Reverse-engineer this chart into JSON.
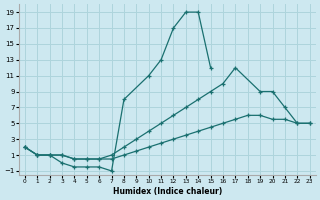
{
  "xlabel": "Humidex (Indice chaleur)",
  "bg_color": "#cde8f0",
  "grid_color": "#aed4dc",
  "line_color": "#1a7070",
  "xlim": [
    -0.5,
    23.5
  ],
  "ylim": [
    -1.5,
    20
  ],
  "xticks": [
    0,
    1,
    2,
    3,
    4,
    5,
    6,
    7,
    8,
    9,
    10,
    11,
    12,
    13,
    14,
    15,
    16,
    17,
    18,
    19,
    20,
    21,
    22,
    23
  ],
  "yticks": [
    -1,
    1,
    3,
    5,
    7,
    9,
    11,
    13,
    15,
    17,
    19
  ],
  "line1_x": [
    0,
    1,
    2,
    3,
    4,
    5,
    6,
    7,
    8,
    10,
    11,
    12,
    13,
    14,
    15,
    16,
    17
  ],
  "line1_y": [
    2,
    1,
    1,
    0,
    -0.5,
    -0.5,
    -0.5,
    -1,
    8,
    11,
    13,
    17,
    19,
    19,
    12,
    null,
    null
  ],
  "line2_x": [
    0,
    1,
    2,
    3,
    4,
    5,
    6,
    7,
    8,
    9,
    10,
    11,
    12,
    13,
    14,
    15,
    16,
    17,
    19,
    20,
    21,
    22,
    23
  ],
  "line2_y": [
    2,
    1,
    1,
    1,
    0.5,
    0.5,
    0.5,
    1,
    2,
    3,
    4,
    5,
    6,
    7,
    8,
    9,
    10,
    12,
    9,
    9,
    7,
    5,
    5
  ],
  "line3_x": [
    0,
    1,
    2,
    3,
    4,
    5,
    6,
    7,
    8,
    9,
    10,
    11,
    12,
    13,
    14,
    15,
    16,
    17,
    18,
    19,
    20,
    21,
    22,
    23
  ],
  "line3_y": [
    2,
    1,
    1,
    1,
    0.5,
    0.5,
    0.5,
    0.5,
    1,
    1.5,
    2,
    2.5,
    3,
    3.5,
    4,
    4.5,
    5,
    5.5,
    6,
    6,
    5.5,
    5.5,
    5,
    5
  ]
}
